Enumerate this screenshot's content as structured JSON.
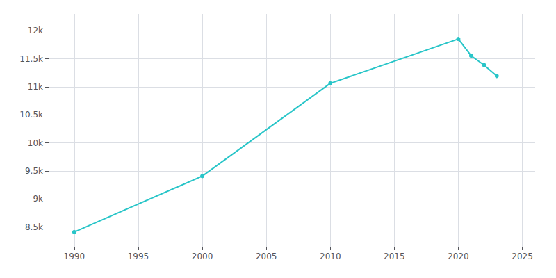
{
  "chart_data": {
    "type": "line",
    "x": [
      1990,
      2000,
      2010,
      2020,
      2021,
      2022,
      2023
    ],
    "values": [
      8411,
      9409,
      11063,
      11853,
      11554,
      11390,
      11193
    ],
    "color": "#28c5c8",
    "marker": "circle",
    "line_style": "solid",
    "xlim": [
      1988,
      2026
    ],
    "xticks": [
      1990,
      1995,
      2000,
      2005,
      2010,
      2015,
      2020,
      2025
    ],
    "ylim": [
      8150,
      12300
    ],
    "yticks": [
      {
        "value": 8500,
        "label": "8.5k"
      },
      {
        "value": 9000,
        "label": "9k"
      },
      {
        "value": 9500,
        "label": "9.5k"
      },
      {
        "value": 10000,
        "label": "10k"
      },
      {
        "value": 10500,
        "label": "10.5k"
      },
      {
        "value": 11000,
        "label": "11k"
      },
      {
        "value": 11500,
        "label": "11.5k"
      },
      {
        "value": 12000,
        "label": "12k"
      }
    ],
    "grid": true
  }
}
